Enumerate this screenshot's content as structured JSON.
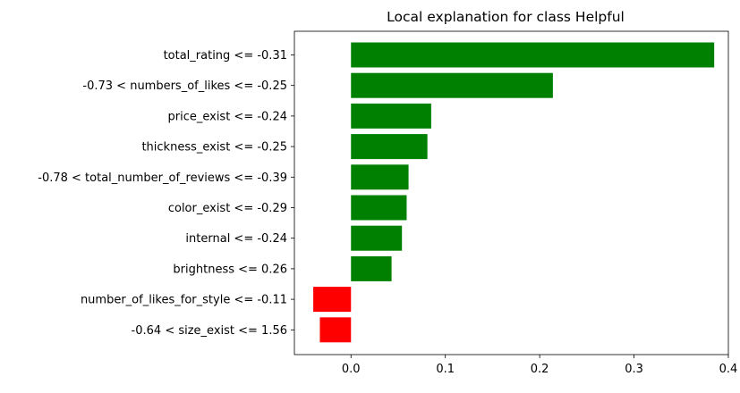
{
  "chart_data": {
    "type": "bar",
    "orientation": "horizontal",
    "title": "Local explanation for class Helpful",
    "xlabel": "",
    "ylabel": "",
    "categories": [
      "total_rating <= -0.31",
      "-0.73 < numbers_of_likes <= -0.25",
      "price_exist <= -0.24",
      "thickness_exist <= -0.25",
      "-0.78 < total_number_of_reviews <= -0.39",
      "color_exist <= -0.29",
      "internal <= -0.24",
      "brightness <= 0.26",
      "number_of_likes_for_style <= -0.11",
      "-0.64 < size_exist <= 1.56"
    ],
    "values": [
      0.385,
      0.214,
      0.085,
      0.081,
      0.061,
      0.059,
      0.054,
      0.043,
      -0.04,
      -0.033
    ],
    "xlim": [
      -0.06,
      0.4
    ],
    "xticks": [
      0.0,
      0.1,
      0.2,
      0.3,
      0.4
    ],
    "xtick_labels": [
      "0.0",
      "0.1",
      "0.2",
      "0.3",
      "0.4"
    ],
    "grid": false,
    "positive_color": "#008000",
    "negative_color": "#ff0000"
  }
}
